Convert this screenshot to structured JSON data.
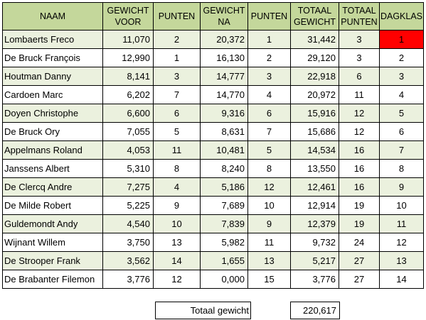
{
  "headers": [
    "NAAM",
    "GEWICHT VOOR",
    "PUNTEN",
    "GEWICHT NA",
    "PUNTEN",
    "TOTAAL GEWICHT",
    "TOTAAL PUNTEN",
    "DAGKLAS"
  ],
  "rows": [
    {
      "naam": "Lombaerts Freco",
      "gewicht_voor": "11,070",
      "punten_voor": "2",
      "gewicht_na": "20,372",
      "punten_na": "1",
      "totaal_gewicht": "31,442",
      "totaal_punten": "3",
      "dagklas": "1"
    },
    {
      "naam": "De Bruck François",
      "gewicht_voor": "12,990",
      "punten_voor": "1",
      "gewicht_na": "16,130",
      "punten_na": "2",
      "totaal_gewicht": "29,120",
      "totaal_punten": "3",
      "dagklas": "2"
    },
    {
      "naam": "Houtman Danny",
      "gewicht_voor": "8,141",
      "punten_voor": "3",
      "gewicht_na": "14,777",
      "punten_na": "3",
      "totaal_gewicht": "22,918",
      "totaal_punten": "6",
      "dagklas": "3"
    },
    {
      "naam": "Cardoen Marc",
      "gewicht_voor": "6,202",
      "punten_voor": "7",
      "gewicht_na": "14,770",
      "punten_na": "4",
      "totaal_gewicht": "20,972",
      "totaal_punten": "11",
      "dagklas": "4"
    },
    {
      "naam": "Doyen Christophe",
      "gewicht_voor": "6,600",
      "punten_voor": "6",
      "gewicht_na": "9,316",
      "punten_na": "6",
      "totaal_gewicht": "15,916",
      "totaal_punten": "12",
      "dagklas": "5"
    },
    {
      "naam": "De Bruck Ory",
      "gewicht_voor": "7,055",
      "punten_voor": "5",
      "gewicht_na": "8,631",
      "punten_na": "7",
      "totaal_gewicht": "15,686",
      "totaal_punten": "12",
      "dagklas": "6"
    },
    {
      "naam": "Appelmans Roland",
      "gewicht_voor": "4,053",
      "punten_voor": "11",
      "gewicht_na": "10,481",
      "punten_na": "5",
      "totaal_gewicht": "14,534",
      "totaal_punten": "16",
      "dagklas": "7"
    },
    {
      "naam": "Janssens Albert",
      "gewicht_voor": "5,310",
      "punten_voor": "8",
      "gewicht_na": "8,240",
      "punten_na": "8",
      "totaal_gewicht": "13,550",
      "totaal_punten": "16",
      "dagklas": "8"
    },
    {
      "naam": "De Clercq Andre",
      "gewicht_voor": "7,275",
      "punten_voor": "4",
      "gewicht_na": "5,186",
      "punten_na": "12",
      "totaal_gewicht": "12,461",
      "totaal_punten": "16",
      "dagklas": "9"
    },
    {
      "naam": "De Milde Robert",
      "gewicht_voor": "5,225",
      "punten_voor": "9",
      "gewicht_na": "7,689",
      "punten_na": "10",
      "totaal_gewicht": "12,914",
      "totaal_punten": "19",
      "dagklas": "10"
    },
    {
      "naam": "Guldemondt Andy",
      "gewicht_voor": "4,540",
      "punten_voor": "10",
      "gewicht_na": "7,839",
      "punten_na": "9",
      "totaal_gewicht": "12,379",
      "totaal_punten": "19",
      "dagklas": "11"
    },
    {
      "naam": "Wijnant Willem",
      "gewicht_voor": "3,750",
      "punten_voor": "13",
      "gewicht_na": "5,982",
      "punten_na": "11",
      "totaal_gewicht": "9,732",
      "totaal_punten": "24",
      "dagklas": "12"
    },
    {
      "naam": "De Strooper Frank",
      "gewicht_voor": "3,562",
      "punten_voor": "14",
      "gewicht_na": "1,655",
      "punten_na": "13",
      "totaal_gewicht": "5,217",
      "totaal_punten": "27",
      "dagklas": "13"
    },
    {
      "naam": "De Brabanter Filemon",
      "gewicht_voor": "3,776",
      "punten_voor": "12",
      "gewicht_na": "0,000",
      "punten_na": "15",
      "totaal_gewicht": "3,776",
      "totaal_punten": "27",
      "dagklas": "14"
    }
  ],
  "total": {
    "label": "Totaal gewicht",
    "value": "220,617"
  },
  "colors": {
    "header_bg": "#c4d79b",
    "stripe_bg": "#ebf1de",
    "highlight": "#ff0000"
  }
}
